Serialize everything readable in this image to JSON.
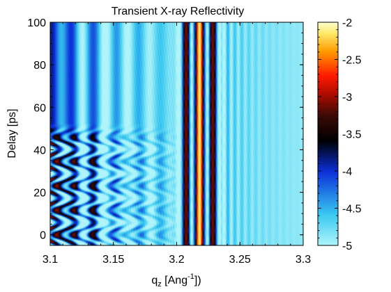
{
  "chart_data": {
    "type": "heatmap",
    "title": "Transient X-ray Reflectivity",
    "xlabel": {
      "base": "q",
      "sub": "z",
      "pre": " [Ang",
      "sup": "-1",
      "post": "])"
    },
    "ylabel": "Delay [ps]",
    "xlim": [
      3.1,
      3.3
    ],
    "ylim": [
      -5,
      100
    ],
    "x_ticks": [
      3.1,
      3.15,
      3.2,
      3.25,
      3.3
    ],
    "x_tick_labels": [
      "3.1",
      "3.15",
      "3.2",
      "3.25",
      "3.3"
    ],
    "y_ticks": [
      0,
      20,
      40,
      60,
      80,
      100
    ],
    "y_tick_labels": [
      "0",
      "20",
      "40",
      "60",
      "80",
      "100"
    ],
    "colorbar": {
      "range": [
        -5,
        -2
      ],
      "ticks": [
        -2,
        -2.5,
        -3,
        -3.5,
        -4,
        -4.5,
        -5
      ],
      "tick_labels": [
        "-2",
        "-2.5",
        "-3",
        "-3.5",
        "-4",
        "-4.5",
        "-5"
      ],
      "colormap": "jet-like (cyan-blue-black-dark red-red-orange-yellow)"
    },
    "grid": false,
    "bragg_peak_qz": 3.218,
    "oscillation_end_delay_ps": 52,
    "colors": {
      "low": "#aef4fa",
      "mid_low": "#0b2fd8",
      "mid": "#000000",
      "mid_high": "#3a0a06",
      "high": "#ff1a00",
      "top": "#ffffd0"
    }
  }
}
